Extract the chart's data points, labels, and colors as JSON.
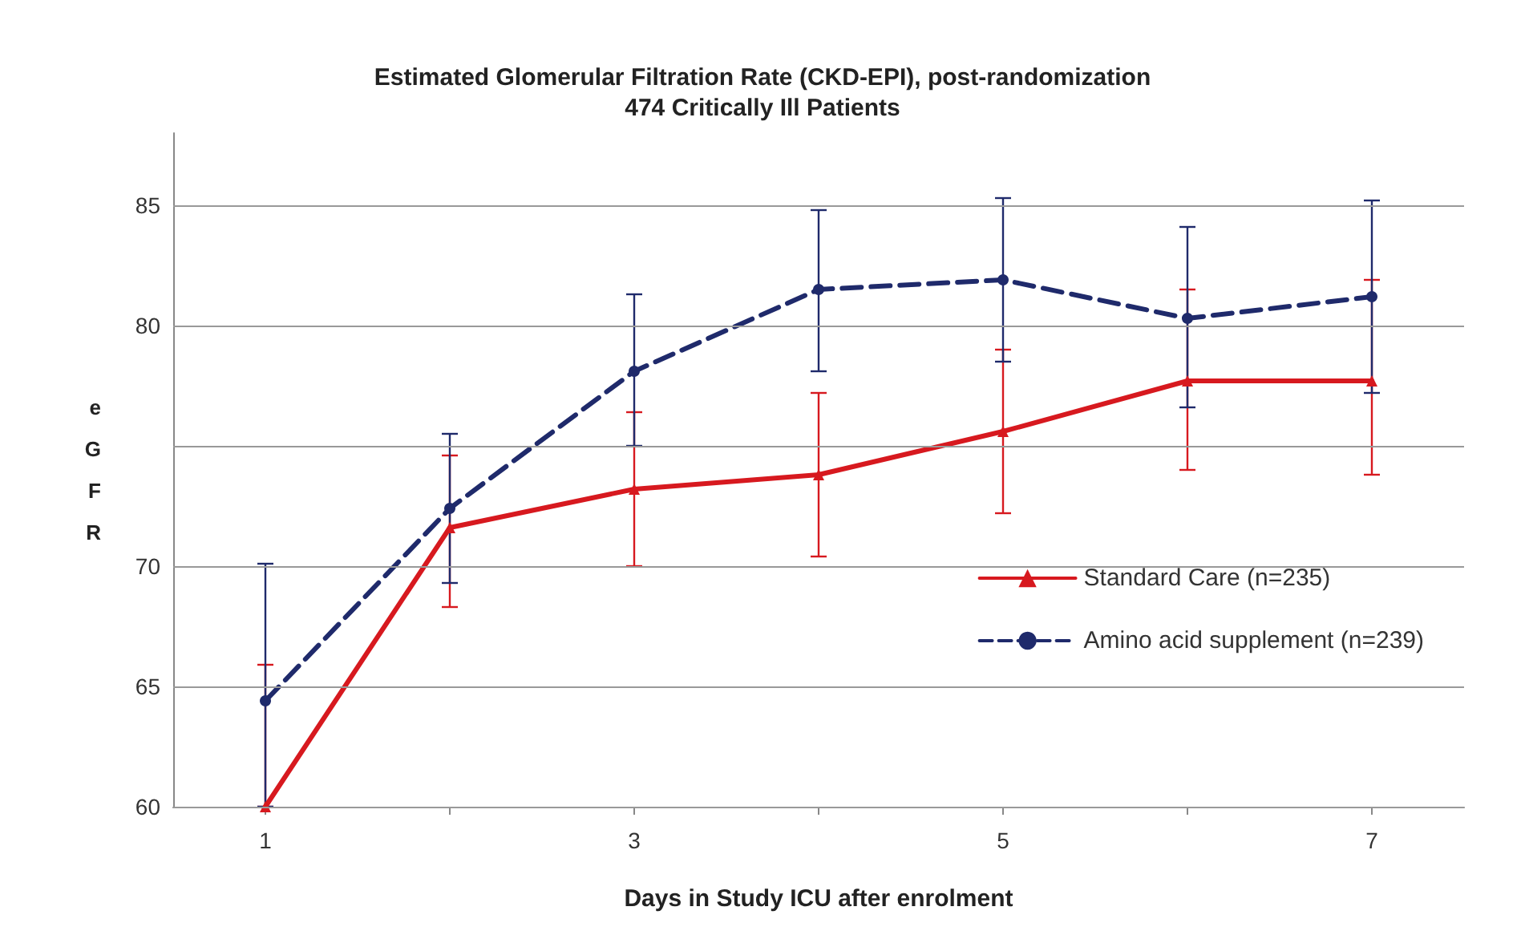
{
  "chart_data": {
    "type": "line",
    "title": "Estimated Glomerular Filtration Rate (CKD-EPI), post-randomization",
    "subtitle": "474 Critically Ill Patients",
    "xlabel": "Days in Study ICU after enrolment",
    "ylabel": "eGFR",
    "x": [
      1,
      2,
      3,
      4,
      5,
      6,
      7
    ],
    "series": [
      {
        "name": "Standard Care (n=235)",
        "color": "#d7191f",
        "marker": "triangle",
        "line_style": "solid",
        "values": [
          60.0,
          71.6,
          73.2,
          73.8,
          75.6,
          77.7,
          77.7
        ],
        "errors": [
          [
            60.0,
            65.9
          ],
          [
            68.3,
            74.6
          ],
          [
            70.0,
            76.4
          ],
          [
            70.4,
            77.2
          ],
          [
            72.2,
            79.0
          ],
          [
            74.0,
            81.5
          ],
          [
            73.8,
            81.9
          ]
        ]
      },
      {
        "name": "Amino acid supplement (n=239)",
        "color": "#1f2a6b",
        "marker": "circle",
        "line_style": "dashed",
        "values": [
          64.4,
          72.4,
          78.1,
          81.5,
          81.9,
          80.3,
          81.2
        ],
        "errors": [
          [
            60.0,
            70.1
          ],
          [
            69.3,
            75.5
          ],
          [
            75.0,
            81.3
          ],
          [
            78.1,
            84.8
          ],
          [
            78.5,
            85.3
          ],
          [
            76.6,
            84.1
          ],
          [
            77.2,
            85.2
          ]
        ]
      }
    ],
    "xlim": [
      0.5,
      7.5
    ],
    "xticks": [
      1,
      {
        "value": 2,
        "label": null
      },
      3,
      {
        "value": 4,
        "label": null
      },
      5,
      {
        "value": 6,
        "label": null
      },
      7
    ],
    "ylim": [
      60,
      88
    ],
    "yticks": [
      60,
      65,
      70,
      {
        "value": 75,
        "label": null
      },
      80,
      85
    ],
    "grid": "y",
    "legend": "right"
  }
}
